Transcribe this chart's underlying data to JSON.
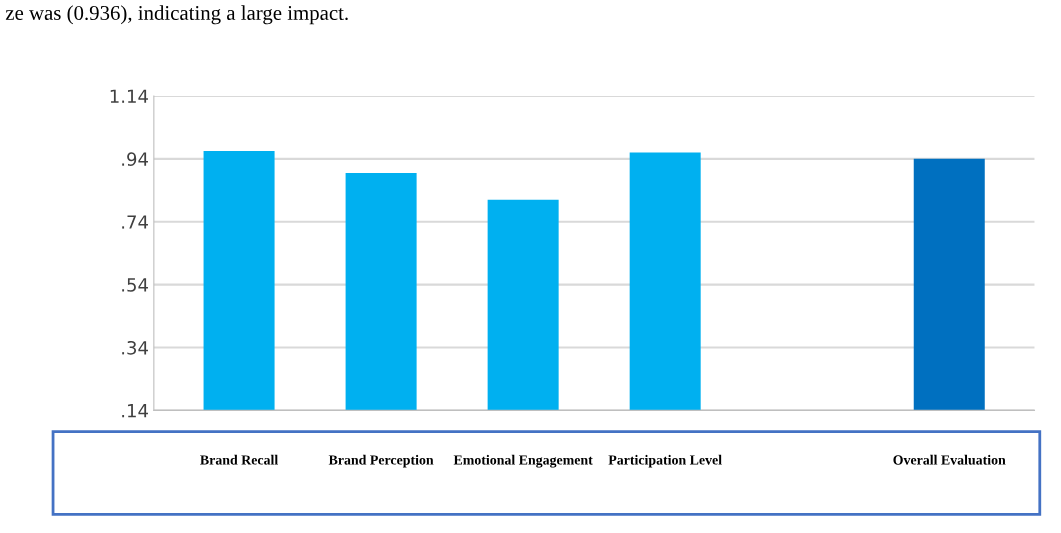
{
  "chart_data": {
    "type": "bar",
    "categories": [
      "Brand Recall",
      "Brand Perception",
      "Emotional Engagement",
      "Participation Level",
      null,
      "Overall Evaluation"
    ],
    "values": [
      0.965,
      0.895,
      0.81,
      0.96,
      null,
      0.94
    ],
    "colors": [
      "#00b0f0",
      "#00b0f0",
      "#00b0f0",
      "#00b0f0",
      "#00b0f0",
      "#0070c0"
    ],
    "ylim": [
      0.14,
      1.14
    ],
    "yticks": [
      {
        "value": 0.14,
        "label": ".14"
      },
      {
        "value": 0.34,
        "label": ".34"
      },
      {
        "value": 0.54,
        "label": ".54"
      },
      {
        "value": 0.74,
        "label": ".74"
      },
      {
        "value": 0.94,
        "label": ".94"
      },
      1.14
    ],
    "grid": "y",
    "annotations": [
      "ze was (0.936), indicating a large impact."
    ]
  }
}
